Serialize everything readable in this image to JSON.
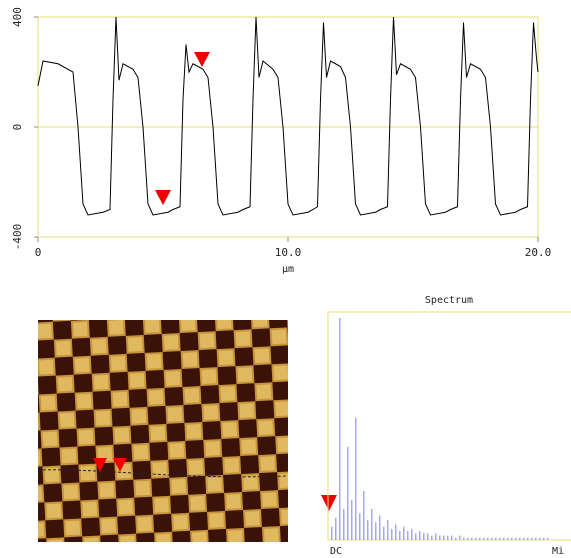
{
  "chart_data": [
    {
      "type": "line",
      "xlabel": "μm",
      "color": "#000000",
      "xlim": [
        0,
        20
      ],
      "ylim": [
        -400,
        400
      ],
      "xticks": [
        0,
        {
          "value": 10,
          "label": "10.0"
        },
        {
          "value": 20,
          "label": "20.0"
        }
      ],
      "yticks": [
        400,
        0,
        -400
      ],
      "x": [
        0,
        0.2,
        0.8,
        1.4,
        1.6,
        1.8,
        2.0,
        2.6,
        2.88,
        3.0,
        3.12,
        3.24,
        3.4,
        3.8,
        4.0,
        4.2,
        4.4,
        4.6,
        5.2,
        5.4,
        5.68,
        5.8,
        5.92,
        6.04,
        6.2,
        6.6,
        6.8,
        7.0,
        7.2,
        7.4,
        8.0,
        8.2,
        8.48,
        8.6,
        8.72,
        8.84,
        9.0,
        9.4,
        9.6,
        9.8,
        10.0,
        10.2,
        10.8,
        11.0,
        11.18,
        11.3,
        11.42,
        11.54,
        11.7,
        12.1,
        12.3,
        12.5,
        12.7,
        12.9,
        13.5,
        13.7,
        13.98,
        14.1,
        14.22,
        14.34,
        14.5,
        14.9,
        15.1,
        15.3,
        15.5,
        15.7,
        16.3,
        16.5,
        16.78,
        16.9,
        17.02,
        17.14,
        17.3,
        17.7,
        17.9,
        18.1,
        18.3,
        18.5,
        19.1,
        19.3,
        19.58,
        19.7,
        19.82,
        19.94,
        20.0
      ],
      "values": [
        150,
        240,
        230,
        200,
        0,
        -280,
        -320,
        -310,
        -300,
        100,
        400,
        170,
        230,
        210,
        180,
        0,
        -280,
        -320,
        -310,
        -300,
        -290,
        100,
        300,
        200,
        230,
        210,
        180,
        0,
        -280,
        -320,
        -310,
        -300,
        -290,
        100,
        400,
        180,
        240,
        210,
        180,
        0,
        -280,
        -320,
        -310,
        -300,
        -290,
        100,
        380,
        180,
        240,
        220,
        180,
        0,
        -280,
        -320,
        -310,
        -300,
        -290,
        100,
        400,
        190,
        230,
        210,
        180,
        0,
        -280,
        -320,
        -310,
        -300,
        -290,
        100,
        380,
        180,
        230,
        210,
        180,
        0,
        -280,
        -320,
        -310,
        -300,
        -290,
        100,
        380,
        250,
        200
      ]
    },
    {
      "type": "bar",
      "title": "Spectrum",
      "xlabels": [
        "DC",
        "Mi"
      ],
      "color": "#a8a8e8",
      "ylim": [
        0,
        100
      ],
      "values": [
        6,
        10,
        100,
        14,
        42,
        18,
        55,
        12,
        22,
        9,
        14,
        8,
        11,
        6,
        9,
        5,
        7,
        4,
        6,
        4,
        5,
        3,
        4,
        3,
        3,
        2,
        3,
        2,
        2,
        2,
        2,
        1,
        2,
        1,
        1,
        1,
        1,
        1,
        1,
        1,
        1,
        1,
        1,
        1,
        1,
        1,
        1,
        1,
        1,
        1,
        1,
        1,
        1,
        1,
        1
      ]
    }
  ]
}
